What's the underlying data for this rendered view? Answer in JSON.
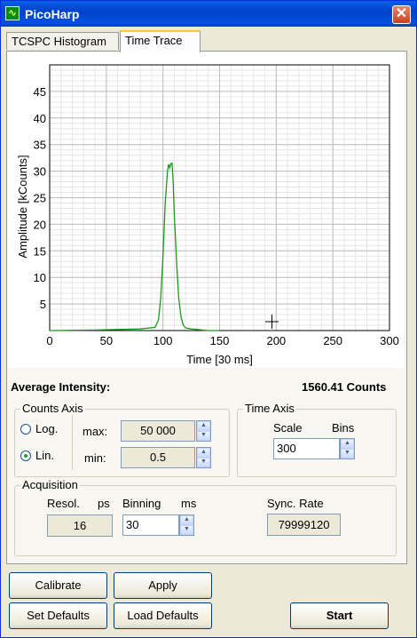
{
  "window": {
    "title": "PicoHarp",
    "close_glyph": "✕",
    "app_icon": "oscilloscope-icon"
  },
  "tabs": [
    {
      "label": "TCSPC Histogram",
      "active": false
    },
    {
      "label": "Time Trace",
      "active": true
    }
  ],
  "chart_data": {
    "type": "line",
    "xlabel": "Time [30 ms]",
    "ylabel": "Amplitude [kCounts]",
    "xlim": [
      0,
      300
    ],
    "ylim": [
      0,
      50
    ],
    "xticks": [
      0,
      50,
      100,
      150,
      200,
      250,
      300
    ],
    "yticks": [
      5,
      10,
      15,
      20,
      25,
      30,
      35,
      40,
      45
    ],
    "grid": true,
    "color": "#1a9a1a",
    "series": [
      {
        "x": [
          0,
          40,
          80,
          93,
          96,
          98,
          100,
          102,
          104,
          105,
          106,
          107,
          108,
          109,
          110,
          112,
          114,
          116,
          118,
          120,
          125,
          130,
          140,
          150
        ],
        "y": [
          0,
          0.1,
          0.3,
          0.6,
          2,
          6,
          14,
          24,
          30,
          31.3,
          30.6,
          31.4,
          31.5,
          28,
          22,
          13,
          6,
          2.5,
          1,
          0.5,
          0.3,
          0.2,
          0,
          0
        ]
      }
    ]
  },
  "intensity": {
    "label": "Average Intensity:",
    "value": "1560.41 Counts"
  },
  "counts_axis": {
    "title": "Counts Axis",
    "log_label": "Log.",
    "lin_label": "Lin.",
    "selected": "Lin.",
    "max_label": "max:",
    "max_value": "50 000",
    "min_label": "min:",
    "min_value": "0.5"
  },
  "time_axis": {
    "title": "Time Axis",
    "scale_label": "Scale",
    "bins_label": "Bins",
    "value": "300"
  },
  "acquisition": {
    "title": "Acquisition",
    "resol_label": "Resol.",
    "resol_unit": "ps",
    "resol_value": "16",
    "binning_label": "Binning",
    "binning_unit": "ms",
    "binning_value": "30",
    "sync_label": "Sync. Rate",
    "sync_value": "79999120"
  },
  "buttons": {
    "calibrate": "Calibrate",
    "apply": "Apply",
    "set_defaults": "Set Defaults",
    "load_defaults": "Load Defaults",
    "start": "Start"
  },
  "spin_glyphs": {
    "up": "▲",
    "down": "▼"
  }
}
